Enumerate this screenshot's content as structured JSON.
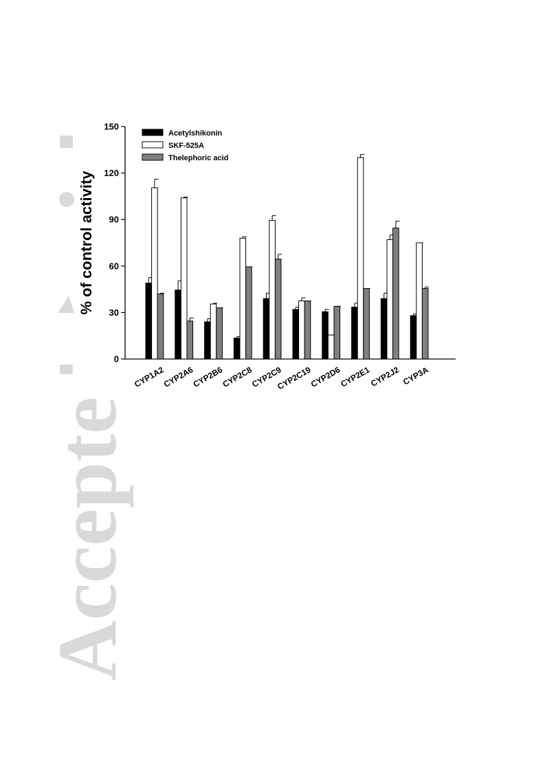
{
  "watermark": {
    "text": "Accepte",
    "color": "#d9d9d9"
  },
  "chart_data": {
    "type": "bar",
    "title": "",
    "xlabel": "",
    "ylabel": "% of control activity",
    "ylim": [
      0,
      150
    ],
    "yticks": [
      0,
      30,
      60,
      90,
      120,
      150
    ],
    "grid": false,
    "legend_position": "top-left",
    "categories": [
      "CYP1A2",
      "CYP2A6",
      "CYP2B6",
      "CYP2C8",
      "CYP2C9",
      "CYP2C19",
      "CYP2D6",
      "CYP2E1",
      "CYP2J2",
      "CYP3A"
    ],
    "series": [
      {
        "name": "Acetylshikonin",
        "fill": "#000000",
        "values": [
          49,
          44.5,
          24,
          13.5,
          39,
          32,
          30.5,
          33.5,
          39,
          28
        ],
        "errors": [
          3.5,
          6,
          2,
          1,
          3.5,
          1.5,
          1.5,
          2.5,
          3.5,
          1
        ]
      },
      {
        "name": "SKF-525A",
        "fill": "#ffffff",
        "values": [
          110.5,
          104,
          35.5,
          78,
          89.5,
          37.5,
          15.5,
          130,
          77,
          75
        ],
        "errors": [
          5.5,
          0.5,
          0.5,
          1,
          3,
          2,
          0,
          2,
          3,
          0
        ]
      },
      {
        "name": "Thelephoric acid",
        "fill": "#808080",
        "values": [
          42,
          24.5,
          33,
          59.5,
          64.5,
          37.5,
          34,
          45.5,
          84.5,
          45.5
        ],
        "errors": [
          0.5,
          2,
          0,
          0,
          3,
          0,
          0,
          0,
          4.5,
          1
        ]
      }
    ]
  }
}
